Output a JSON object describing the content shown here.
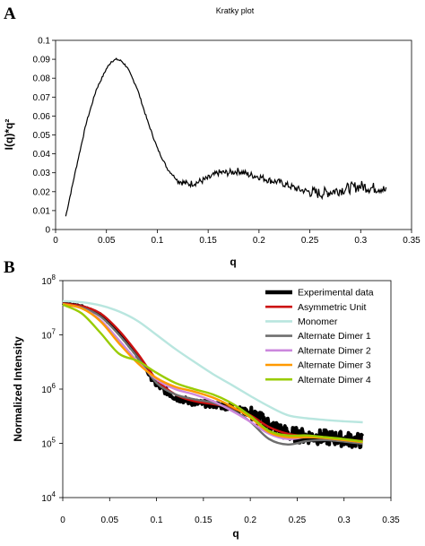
{
  "chart_data": [
    {
      "panel": "A",
      "type": "line",
      "title": "Kratky plot",
      "xlabel": "q",
      "ylabel": "I(q)*q²",
      "xlim": [
        0,
        0.35
      ],
      "ylim": [
        0,
        0.1
      ],
      "xticks": [
        "0",
        "0.05",
        "0.1",
        "0.15",
        "0.2",
        "0.25",
        "0.3",
        "0.35"
      ],
      "yticks": [
        "0",
        "0.01",
        "0.02",
        "0.03",
        "0.04",
        "0.05",
        "0.06",
        "0.07",
        "0.08",
        "0.09",
        "0.1"
      ],
      "grid": false,
      "series": [
        {
          "color": "#000000",
          "x": [
            0.01,
            0.02,
            0.03,
            0.04,
            0.05,
            0.055,
            0.06,
            0.065,
            0.07,
            0.08,
            0.09,
            0.1,
            0.11,
            0.12,
            0.13,
            0.14,
            0.15,
            0.16,
            0.17,
            0.18,
            0.19,
            0.2,
            0.21,
            0.22,
            0.23,
            0.24,
            0.25,
            0.26,
            0.27,
            0.28,
            0.29,
            0.3,
            0.31,
            0.32,
            0.325
          ],
          "y": [
            0.007,
            0.032,
            0.056,
            0.074,
            0.085,
            0.089,
            0.09,
            0.089,
            0.086,
            0.075,
            0.058,
            0.043,
            0.032,
            0.026,
            0.024,
            0.025,
            0.027,
            0.03,
            0.03,
            0.031,
            0.029,
            0.028,
            0.026,
            0.025,
            0.023,
            0.021,
            0.02,
            0.019,
            0.02,
            0.021,
            0.022,
            0.023,
            0.022,
            0.022,
            0.02
          ]
        }
      ]
    },
    {
      "panel": "B",
      "type": "line",
      "xlabel": "q",
      "ylabel": "Normalized Intensity",
      "xlim": [
        0,
        0.35
      ],
      "ylim": [
        10000,
        100000000
      ],
      "yscale": "log",
      "xticks": [
        "0",
        "0.05",
        "0.1",
        "0.15",
        "0.2",
        "0.25",
        "0.3",
        "0.35"
      ],
      "ytick_base": "10",
      "ytick_exponents": [
        "4",
        "5",
        "6",
        "7",
        "8"
      ],
      "grid": false,
      "legend": "top-right",
      "x": [
        0.0,
        0.02,
        0.04,
        0.06,
        0.08,
        0.1,
        0.12,
        0.14,
        0.16,
        0.18,
        0.2,
        0.22,
        0.24,
        0.26,
        0.28,
        0.3,
        0.32
      ],
      "series": [
        {
          "name": "Experimental data",
          "color": "#000000",
          "y": [
            38000000,
            34000000,
            24000000,
            11000000,
            4000000,
            1200000,
            700000,
            560000,
            520000,
            460000,
            360000,
            220000,
            150000,
            135000,
            128000,
            120000,
            110000
          ]
        },
        {
          "name": "Asymmetric Unit",
          "color": "#cc1111",
          "y": [
            38000000,
            34000000,
            25000000,
            12000000,
            4500000,
            1500000,
            800000,
            600000,
            530000,
            450000,
            330000,
            200000,
            150000,
            135000,
            125000,
            118000,
            110000
          ]
        },
        {
          "name": "Monomer",
          "color": "#b9e6df",
          "y": [
            42000000,
            40000000,
            35000000,
            27000000,
            18000000,
            10000000,
            5500000,
            3200000,
            1900000,
            1200000,
            750000,
            480000,
            330000,
            290000,
            270000,
            255000,
            245000
          ]
        },
        {
          "name": "Alternate Dimer 1",
          "color": "#6e6e6e",
          "y": [
            37000000,
            32000000,
            22000000,
            10000000,
            3800000,
            1300000,
            800000,
            650000,
            560000,
            420000,
            250000,
            120000,
            95000,
            110000,
            115000,
            108000,
            98000
          ]
        },
        {
          "name": "Alternate Dimer 2",
          "color": "#cc88dd",
          "y": [
            37000000,
            31000000,
            19000000,
            8000000,
            3200000,
            1500000,
            1000000,
            800000,
            600000,
            400000,
            250000,
            150000,
            120000,
            130000,
            125000,
            115000,
            105000
          ]
        },
        {
          "name": "Alternate Dimer 3",
          "color": "#ff9900",
          "y": [
            37000000,
            31000000,
            18000000,
            7000000,
            3000000,
            1600000,
            1100000,
            900000,
            700000,
            480000,
            300000,
            160000,
            130000,
            130000,
            125000,
            115000,
            105000
          ]
        },
        {
          "name": "Alternate Dimer 4",
          "color": "#99cc00",
          "y": [
            36000000,
            25000000,
            11000000,
            4500000,
            3300000,
            2000000,
            1300000,
            1000000,
            800000,
            550000,
            320000,
            170000,
            140000,
            140000,
            130000,
            120000,
            108000
          ]
        }
      ]
    }
  ]
}
